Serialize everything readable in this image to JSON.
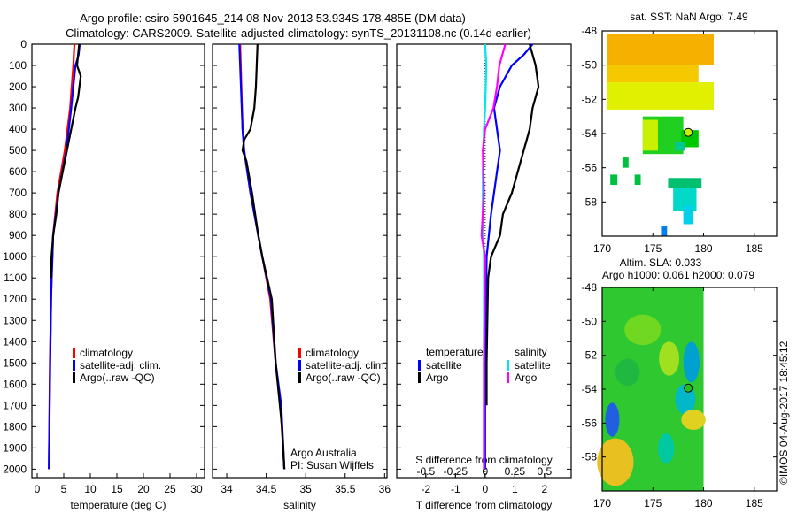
{
  "title": {
    "line1": "Argo profile: csiro 5901645_214 08-Nov-2013 53.934S 178.485E (DM data)",
    "line2": "Climatology: CARS2009. Satellite-adjusted climatology: synTS_20131108.nc (0.14d earlier)"
  },
  "copyright": "©IMOS 04-Aug-2017 18:45:12",
  "colors": {
    "clim": "#ff0000",
    "sat": "#0000ff",
    "argo": "#000000",
    "sat_s": "#00e5ee",
    "argo_s": "#ff00ff"
  },
  "chart_data": [
    {
      "type": "line",
      "id": "temperature",
      "xlabel": "temperature (deg C)",
      "xlim": [
        -1,
        31.5
      ],
      "ylim": [
        2040,
        0
      ],
      "xticks": [
        0,
        5,
        10,
        15,
        20,
        25,
        30
      ],
      "yticks": [
        0,
        100,
        200,
        300,
        400,
        500,
        600,
        700,
        800,
        900,
        1000,
        1100,
        1200,
        1300,
        1400,
        1500,
        1600,
        1700,
        1800,
        1900,
        2000
      ],
      "legend": [
        "climatology",
        "satellite-adj. clim.",
        "Argo(..raw -QC)"
      ],
      "series": [
        {
          "name": "climatology",
          "color": "clim",
          "depth": [
            0,
            100,
            300,
            500,
            700,
            900,
            1100,
            1500,
            2000
          ],
          "values": [
            7.0,
            6.8,
            6.2,
            5.2,
            3.8,
            3.0,
            2.7,
            2.4,
            2.2
          ]
        },
        {
          "name": "satellite-adj. clim.",
          "color": "sat",
          "depth": [
            0,
            50,
            100,
            300,
            500,
            700,
            900,
            1200,
            1600,
            2000
          ],
          "values": [
            8.0,
            7.8,
            7.2,
            6.4,
            5.5,
            4.0,
            3.0,
            2.6,
            2.4,
            2.2
          ]
        },
        {
          "name": "Argo(..raw -QC)",
          "color": "argo",
          "depth": [
            0,
            100,
            150,
            250,
            300,
            400,
            500,
            600,
            700,
            800,
            900,
            1000,
            1100
          ],
          "values": [
            7.9,
            7.5,
            8.2,
            7.7,
            7.2,
            6.4,
            5.6,
            4.8,
            4.0,
            3.6,
            3.0,
            2.7,
            2.6
          ]
        }
      ]
    },
    {
      "type": "line",
      "id": "salinity",
      "xlabel": "salinity",
      "xlim": [
        33.82,
        36.03
      ],
      "ylim": [
        2040,
        0
      ],
      "xticks": [
        34,
        34.5,
        35,
        35.5,
        36
      ],
      "legend": [
        "climatology",
        "satellite-adj. clim.",
        "Argo(..raw -QC)"
      ],
      "annotation": [
        "Argo Australia",
        "PI: Susan Wijffels"
      ],
      "series": [
        {
          "name": "climatology",
          "color": "clim",
          "depth": [
            0,
            400,
            500,
            700,
            900,
            1000,
            1200,
            1500,
            1700,
            2000
          ],
          "values": [
            34.17,
            34.2,
            34.22,
            34.3,
            34.4,
            34.45,
            34.55,
            34.62,
            34.68,
            34.73
          ]
        },
        {
          "name": "satellite-adj. clim.",
          "color": "sat",
          "depth": [
            0,
            400,
            500,
            700,
            900,
            1000,
            1200,
            1500,
            1700,
            2000
          ],
          "values": [
            34.16,
            34.2,
            34.22,
            34.3,
            34.4,
            34.45,
            34.56,
            34.62,
            34.69,
            34.73
          ]
        },
        {
          "name": "Argo(..raw -QC)",
          "color": "argo",
          "depth": [
            0,
            200,
            300,
            400,
            450,
            500,
            550,
            700,
            900,
            1000,
            1200,
            1500,
            1800,
            2000
          ],
          "values": [
            34.39,
            34.37,
            34.35,
            34.3,
            34.22,
            34.2,
            34.25,
            34.32,
            34.4,
            34.45,
            34.57,
            34.62,
            34.7,
            34.73
          ]
        }
      ]
    },
    {
      "type": "line",
      "id": "difference",
      "xlabel": "T difference from climatology",
      "xlabel2": "S difference from climatology",
      "xlim": [
        -2.98,
        2.9
      ],
      "ylim": [
        2040,
        0
      ],
      "xticks": [
        -2,
        -1,
        0,
        1,
        2
      ],
      "xticks_s": [
        -0.5,
        -0.25,
        0,
        0.25,
        0.5
      ],
      "xtick_s_labels": [
        "-0.5",
        "-0.25",
        "0",
        "0.25",
        "0.5"
      ],
      "legend_headers": [
        "temperature",
        "salinity"
      ],
      "legend": [
        "satellite",
        "Argo",
        "satellite",
        "Argo"
      ],
      "series": [
        {
          "name": "temperature satellite",
          "color": "sat",
          "scale": "T",
          "depth": [
            0,
            50,
            100,
            200,
            300,
            400,
            500,
            600,
            800,
            1000,
            1500,
            2000
          ],
          "values": [
            1.6,
            1.3,
            0.9,
            0.5,
            0.3,
            0.4,
            0.5,
            0.4,
            0.2,
            0.05,
            0.0,
            0.0
          ]
        },
        {
          "name": "temperature Argo",
          "color": "argo",
          "scale": "T",
          "depth": [
            0,
            100,
            200,
            300,
            400,
            500,
            600,
            700,
            800,
            900,
            1000,
            1100,
            1500,
            1700
          ],
          "values": [
            1.5,
            1.7,
            1.8,
            1.6,
            1.5,
            1.3,
            1.1,
            0.9,
            0.6,
            0.5,
            0.2,
            0.1,
            0.05,
            0.05
          ]
        },
        {
          "name": "salinity satellite",
          "color": "sat_s",
          "scale": "S",
          "depth": [
            0,
            100,
            300,
            400,
            600,
            800,
            1000,
            1500,
            2000
          ],
          "values": [
            0.0,
            0.01,
            0.0,
            -0.01,
            -0.02,
            -0.02,
            -0.01,
            -0.01,
            -0.01
          ]
        },
        {
          "name": "salinity Argo",
          "color": "argo_s",
          "scale": "S",
          "depth": [
            0,
            100,
            200,
            300,
            400,
            500,
            700,
            900,
            1000,
            1500,
            2000
          ],
          "values": [
            0.17,
            0.12,
            0.1,
            0.07,
            0.0,
            -0.02,
            -0.01,
            -0.03,
            0.0,
            -0.01,
            -0.01
          ]
        }
      ]
    },
    {
      "type": "heatmap",
      "id": "sst_map",
      "title": "sat. SST: NaN Argo: 7.49",
      "xlim": [
        170,
        187.2
      ],
      "ylim": [
        -60,
        -48
      ],
      "xticks": [
        170,
        175,
        180,
        185
      ],
      "yticks": [
        -48,
        -50,
        -52,
        -54,
        -56,
        -58
      ],
      "argo_position": [
        178.485,
        -53.934
      ],
      "patches": [
        {
          "lon": [
            170.5,
            181
          ],
          "lat": [
            -50,
            -48.2
          ],
          "color": "#f5b000"
        },
        {
          "lon": [
            170.5,
            179.5
          ],
          "lat": [
            -51,
            -50
          ],
          "color": "#f5c800"
        },
        {
          "lon": [
            170.5,
            181
          ],
          "lat": [
            -52.6,
            -51
          ],
          "color": "#e0f000"
        },
        {
          "lon": [
            174,
            178
          ],
          "lat": [
            -55.2,
            -53
          ],
          "color": "#20d020"
        },
        {
          "lon": [
            174,
            175.5
          ],
          "lat": [
            -55,
            -53.2
          ],
          "color": "#c8f000"
        },
        {
          "lon": [
            177.8,
            179.5
          ],
          "lat": [
            -54.8,
            -53.8
          ],
          "color": "#00c800"
        },
        {
          "lon": [
            177.2,
            178.2
          ],
          "lat": [
            -55,
            -54.5
          ],
          "color": "#00c890"
        },
        {
          "lon": [
            176.5,
            179.8
          ],
          "lat": [
            -57.2,
            -56.6
          ],
          "color": "#00c070"
        },
        {
          "lon": [
            177,
            179.3
          ],
          "lat": [
            -58.5,
            -57.2
          ],
          "color": "#00d8c8"
        },
        {
          "lon": [
            178,
            179
          ],
          "lat": [
            -59.3,
            -58.2
          ],
          "color": "#00d0e8"
        },
        {
          "lon": [
            175.8,
            176.4
          ],
          "lat": [
            -60,
            -59.4
          ],
          "color": "#0080f0"
        },
        {
          "lon": [
            170.8,
            171.5
          ],
          "lat": [
            -57,
            -56.4
          ],
          "color": "#00c040"
        },
        {
          "lon": [
            173.2,
            173.8
          ],
          "lat": [
            -57,
            -56.4
          ],
          "color": "#00c040"
        },
        {
          "lon": [
            172,
            172.6
          ],
          "lat": [
            -56,
            -55.4
          ],
          "color": "#00c040"
        }
      ]
    },
    {
      "type": "heatmap",
      "id": "sla_map",
      "title": "Altim. SLA: 0.033",
      "subtitle": "Argo h1000: 0.061 h2000: 0.079",
      "xlim": [
        170,
        187.2
      ],
      "ylim": [
        -60,
        -48
      ],
      "xticks": [
        170,
        175,
        180,
        185
      ],
      "yticks": [
        -48,
        -50,
        -52,
        -54,
        -56,
        -58
      ],
      "argo_position": [
        178.485,
        -53.934
      ],
      "data_lon": [
        170,
        180
      ],
      "background": "#30c830",
      "features": [
        {
          "lon": 178.8,
          "lat": -52.4,
          "rlon": 0.8,
          "rlat": 1.2,
          "color": "#00a0d0"
        },
        {
          "lon": 178.2,
          "lat": -54.6,
          "rlon": 1.0,
          "rlat": 0.9,
          "color": "#00b8c8"
        },
        {
          "lon": 171,
          "lat": -55.8,
          "rlon": 0.7,
          "rlat": 1.0,
          "color": "#2060e0"
        },
        {
          "lon": 171.3,
          "lat": -58.3,
          "rlon": 1.8,
          "rlat": 1.4,
          "color": "#e8c020"
        },
        {
          "lon": 179,
          "lat": -55.8,
          "rlon": 1.2,
          "rlat": 0.6,
          "color": "#e0d020"
        },
        {
          "lon": 176.6,
          "lat": -52.2,
          "rlon": 1.0,
          "rlat": 1.0,
          "color": "#a0e020"
        },
        {
          "lon": 174,
          "lat": -50.5,
          "rlon": 1.8,
          "rlat": 0.9,
          "color": "#70d820"
        },
        {
          "lon": 176.3,
          "lat": -57.5,
          "rlon": 0.8,
          "rlat": 0.9,
          "color": "#00c8a0"
        },
        {
          "lon": 172.5,
          "lat": -53,
          "rlon": 1.2,
          "rlat": 0.8,
          "color": "#20b840"
        }
      ]
    }
  ]
}
